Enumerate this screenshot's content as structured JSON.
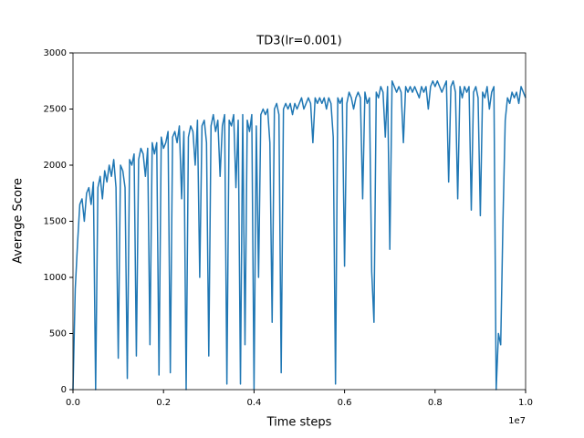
{
  "chart_data": {
    "type": "line",
    "title": "TD3(lr=0.001)",
    "xlabel": "Time steps",
    "ylabel": "Average Score",
    "x_offset_label": "1e7",
    "xlim": [
      0,
      10000000
    ],
    "ylim": [
      0,
      3000
    ],
    "xticks": [
      {
        "value": 0,
        "label": "0.0"
      },
      {
        "value": 2000000,
        "label": "0.2"
      },
      {
        "value": 4000000,
        "label": "0.4"
      },
      {
        "value": 6000000,
        "label": "0.6"
      },
      {
        "value": 8000000,
        "label": "0.8"
      },
      {
        "value": 10000000,
        "label": "1.0"
      }
    ],
    "yticks": [
      0,
      500,
      1000,
      1500,
      2000,
      2500,
      3000
    ],
    "grid": false,
    "x": [
      0,
      50000,
      100000,
      150000,
      200000,
      250000,
      300000,
      350000,
      400000,
      450000,
      500000,
      550000,
      600000,
      650000,
      700000,
      750000,
      800000,
      850000,
      900000,
      950000,
      1000000,
      1050000,
      1100000,
      1150000,
      1200000,
      1250000,
      1300000,
      1350000,
      1400000,
      1450000,
      1500000,
      1550000,
      1600000,
      1650000,
      1700000,
      1750000,
      1800000,
      1850000,
      1900000,
      1950000,
      2000000,
      2050000,
      2100000,
      2150000,
      2200000,
      2250000,
      2300000,
      2350000,
      2400000,
      2450000,
      2500000,
      2550000,
      2600000,
      2650000,
      2700000,
      2750000,
      2800000,
      2850000,
      2900000,
      2950000,
      3000000,
      3050000,
      3100000,
      3150000,
      3200000,
      3250000,
      3300000,
      3350000,
      3400000,
      3450000,
      3500000,
      3550000,
      3600000,
      3650000,
      3700000,
      3750000,
      3800000,
      3850000,
      3900000,
      3950000,
      4000000,
      4050000,
      4100000,
      4150000,
      4200000,
      4250000,
      4300000,
      4350000,
      4400000,
      4450000,
      4500000,
      4550000,
      4600000,
      4650000,
      4700000,
      4750000,
      4800000,
      4850000,
      4900000,
      4950000,
      5000000,
      5050000,
      5100000,
      5150000,
      5200000,
      5250000,
      5300000,
      5350000,
      5400000,
      5450000,
      5500000,
      5550000,
      5600000,
      5650000,
      5700000,
      5750000,
      5800000,
      5850000,
      5900000,
      5950000,
      6000000,
      6050000,
      6100000,
      6150000,
      6200000,
      6250000,
      6300000,
      6350000,
      6400000,
      6450000,
      6500000,
      6550000,
      6600000,
      6650000,
      6700000,
      6750000,
      6800000,
      6850000,
      6900000,
      6950000,
      7000000,
      7050000,
      7100000,
      7150000,
      7200000,
      7250000,
      7300000,
      7350000,
      7400000,
      7450000,
      7500000,
      7550000,
      7600000,
      7650000,
      7700000,
      7750000,
      7800000,
      7850000,
      7900000,
      7950000,
      8000000,
      8050000,
      8100000,
      8150000,
      8200000,
      8250000,
      8300000,
      8350000,
      8400000,
      8450000,
      8500000,
      8550000,
      8600000,
      8650000,
      8700000,
      8750000,
      8800000,
      8850000,
      8900000,
      8950000,
      9000000,
      9050000,
      9100000,
      9150000,
      9200000,
      9250000,
      9300000,
      9350000,
      9400000,
      9450000,
      9500000,
      9550000,
      9600000,
      9650000,
      9700000,
      9750000,
      9800000,
      9850000,
      9900000,
      9950000,
      10000000
    ],
    "series": [
      {
        "color": "#1f77b4",
        "values": [
          0,
          900,
          1300,
          1650,
          1700,
          1500,
          1750,
          1800,
          1650,
          1850,
          0,
          1800,
          1900,
          1700,
          1950,
          1850,
          2000,
          1900,
          2050,
          1800,
          280,
          2000,
          1950,
          1800,
          100,
          2050,
          2000,
          2100,
          300,
          2050,
          2150,
          2100,
          1900,
          2150,
          400,
          2200,
          2100,
          2200,
          130,
          2250,
          2150,
          2200,
          2300,
          150,
          2250,
          2300,
          2200,
          2350,
          1700,
          2300,
          0,
          2250,
          2350,
          2300,
          2000,
          2400,
          1000,
          2350,
          2400,
          2200,
          300,
          2350,
          2450,
          2300,
          2400,
          1900,
          2350,
          2450,
          50,
          2400,
          2350,
          2450,
          1800,
          2400,
          50,
          2450,
          400,
          2400,
          2300,
          2450,
          0,
          2350,
          1000,
          2450,
          2500,
          2450,
          2500,
          2200,
          600,
          2500,
          2550,
          2450,
          150,
          2500,
          2550,
          2500,
          2550,
          2450,
          2550,
          2500,
          2550,
          2600,
          2500,
          2550,
          2600,
          2550,
          2200,
          2600,
          2550,
          2600,
          2550,
          2600,
          2500,
          2600,
          2550,
          2250,
          50,
          2600,
          2550,
          2600,
          1100,
          2550,
          2650,
          2600,
          2500,
          2600,
          2650,
          2600,
          1700,
          2650,
          2550,
          2600,
          1050,
          600,
          2650,
          2600,
          2700,
          2650,
          2250,
          2700,
          1250,
          2750,
          2700,
          2650,
          2700,
          2650,
          2200,
          2700,
          2650,
          2700,
          2650,
          2700,
          2650,
          2600,
          2700,
          2650,
          2700,
          2500,
          2700,
          2750,
          2700,
          2750,
          2700,
          2650,
          2700,
          2750,
          1850,
          2700,
          2750,
          2650,
          1700,
          2700,
          2600,
          2700,
          2650,
          2700,
          1600,
          2650,
          2700,
          2600,
          1550,
          2650,
          2600,
          2700,
          2500,
          2650,
          2700,
          0,
          500,
          400,
          1500,
          2400,
          2600,
          2550,
          2650,
          2600,
          2650,
          2550,
          2700,
          2650,
          2600
        ]
      }
    ]
  }
}
